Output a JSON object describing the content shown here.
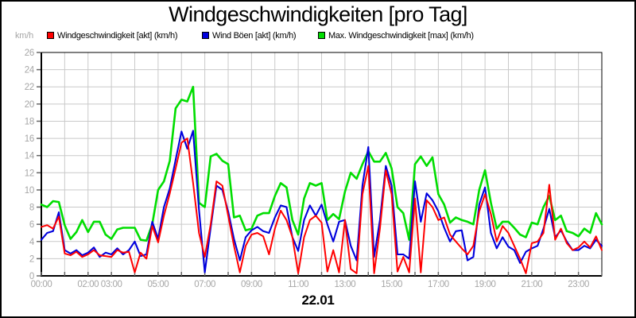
{
  "title": "Windgeschwindigkeiten [pro Tag]",
  "y_axis_unit": "km/h",
  "date_label": "22.01",
  "legend": [
    {
      "label": "Windgeschwindigkeit [akt] (km/h)",
      "color": "#ff0000"
    },
    {
      "label": "Wind Böen [akt] (km/h)",
      "color": "#0000dd"
    },
    {
      "label": "Max. Windgeschwindigkeit [max] (km/h)",
      "color": "#00dd00"
    }
  ],
  "colors": {
    "grid": "#c9c9c9",
    "axis": "#000000",
    "tick": "#666666",
    "axis_label": "#a6a6a6"
  },
  "chart_data": {
    "type": "line",
    "title": "Windgeschwindigkeiten [pro Tag]",
    "xlabel": "22.01",
    "ylabel": "km/h",
    "xlim": [
      0,
      24
    ],
    "ylim": [
      0,
      26
    ],
    "y_tick_step": 2,
    "x_gridline_every_hours": 1,
    "grid": true,
    "legend_position": "top",
    "y_tick_labels": [
      "0",
      "2",
      "4",
      "6",
      "8",
      "10",
      "12",
      "14",
      "16",
      "18",
      "20",
      "22",
      "24",
      "26"
    ],
    "x_ticks": [
      {
        "hour": 0,
        "label": "00:00"
      },
      {
        "hour": 2,
        "label": "02:00"
      },
      {
        "hour": 3,
        "label": "03:00"
      },
      {
        "hour": 5,
        "label": "05:00"
      },
      {
        "hour": 7,
        "label": "07:00"
      },
      {
        "hour": 9,
        "label": "09:00"
      },
      {
        "hour": 11,
        "label": "11:00"
      },
      {
        "hour": 13,
        "label": "13:00"
      },
      {
        "hour": 15,
        "label": "15:00"
      },
      {
        "hour": 17,
        "label": "17:00"
      },
      {
        "hour": 19,
        "label": "19:00"
      },
      {
        "hour": 21,
        "label": "21:00"
      },
      {
        "hour": 23,
        "label": "23:00"
      }
    ],
    "x_start_hour": 0,
    "x_step_hours": 0.25,
    "series": [
      {
        "name": "Windgeschwindigkeit [akt] (km/h)",
        "color": "#ff0000",
        "values": [
          5.7,
          5.9,
          5.5,
          6.9,
          2.6,
          2.4,
          2.8,
          2.2,
          2.5,
          3.0,
          2.4,
          2.3,
          2.2,
          3.0,
          2.7,
          2.8,
          0.4,
          2.7,
          2.0,
          5.8,
          3.9,
          7.0,
          9.6,
          12.5,
          15.5,
          16.0,
          10.8,
          5.0,
          2.2,
          6.0,
          11.0,
          10.5,
          7.0,
          3.5,
          0.4,
          3.5,
          4.8,
          5.0,
          4.6,
          2.5,
          5.5,
          7.6,
          6.5,
          4.5,
          0.3,
          4.5,
          6.5,
          7.0,
          6.2,
          0.5,
          3.0,
          0.4,
          6.5,
          0.8,
          0.3,
          9.5,
          12.8,
          0.3,
          5.5,
          12.3,
          9.5,
          0.5,
          2.2,
          0.4,
          9.0,
          0.4,
          8.8,
          8.0,
          6.5,
          6.8,
          4.8,
          4.0,
          3.2,
          2.5,
          3.5,
          7.5,
          9.5,
          7.2,
          4.0,
          5.8,
          5.0,
          3.5,
          2.0,
          0.3,
          3.8,
          4.0,
          5.0,
          10.6,
          4.2,
          5.5,
          3.8,
          3.0,
          3.3,
          4.0,
          3.3,
          4.6,
          3.0
        ]
      },
      {
        "name": "Wind Böen [akt] (km/h)",
        "color": "#0000dd",
        "values": [
          4.2,
          5.0,
          5.2,
          7.4,
          3.0,
          2.6,
          3.0,
          2.4,
          2.7,
          3.3,
          2.2,
          2.7,
          2.5,
          3.2,
          2.5,
          3.0,
          4.0,
          2.3,
          2.5,
          6.3,
          4.3,
          8.0,
          10.2,
          13.5,
          16.8,
          14.8,
          16.9,
          7.7,
          0.4,
          5.6,
          10.5,
          10.0,
          7.5,
          4.3,
          1.8,
          4.5,
          5.3,
          5.7,
          5.2,
          5.0,
          6.8,
          8.2,
          8.0,
          4.5,
          2.9,
          6.5,
          8.2,
          7.0,
          8.3,
          6.0,
          4.0,
          6.3,
          6.5,
          3.5,
          1.8,
          10.5,
          15.0,
          2.2,
          6.5,
          12.8,
          10.5,
          2.5,
          2.5,
          2.0,
          11.0,
          6.3,
          9.6,
          8.8,
          7.5,
          5.6,
          4.0,
          5.2,
          5.3,
          1.8,
          2.2,
          8.3,
          10.3,
          5.0,
          3.2,
          4.5,
          3.4,
          3.0,
          1.5,
          2.8,
          3.2,
          3.5,
          5.5,
          7.8,
          4.5,
          5.3,
          4.0,
          3.0,
          3.0,
          3.5,
          3.2,
          4.2,
          3.5
        ]
      },
      {
        "name": "Max. Windgeschwindigkeit [max] (km/h)",
        "color": "#00dd00",
        "values": [
          8.3,
          8.0,
          8.7,
          8.6,
          5.9,
          4.3,
          5.1,
          6.5,
          5.1,
          6.3,
          6.3,
          4.8,
          4.3,
          5.4,
          5.6,
          5.6,
          5.6,
          4.2,
          4.1,
          6.0,
          10.0,
          11.0,
          13.4,
          19.5,
          20.5,
          20.3,
          22.0,
          8.5,
          8.0,
          13.9,
          14.2,
          13.4,
          13.0,
          6.8,
          7.0,
          5.3,
          5.5,
          7.0,
          7.3,
          7.3,
          9.3,
          10.8,
          10.3,
          6.5,
          4.8,
          9.0,
          10.8,
          10.5,
          10.8,
          6.5,
          7.2,
          6.6,
          9.8,
          12.0,
          11.3,
          13.0,
          14.5,
          13.3,
          13.3,
          14.3,
          12.5,
          8.0,
          7.3,
          4.2,
          13.0,
          13.9,
          12.8,
          13.8,
          9.5,
          8.3,
          6.2,
          6.8,
          6.5,
          6.3,
          6.0,
          10.0,
          12.3,
          8.5,
          5.5,
          6.3,
          6.3,
          5.6,
          4.8,
          4.5,
          6.2,
          6.0,
          8.0,
          9.3,
          6.5,
          7.0,
          5.2,
          5.0,
          4.6,
          5.5,
          5.0,
          7.3,
          6.0
        ]
      }
    ]
  }
}
